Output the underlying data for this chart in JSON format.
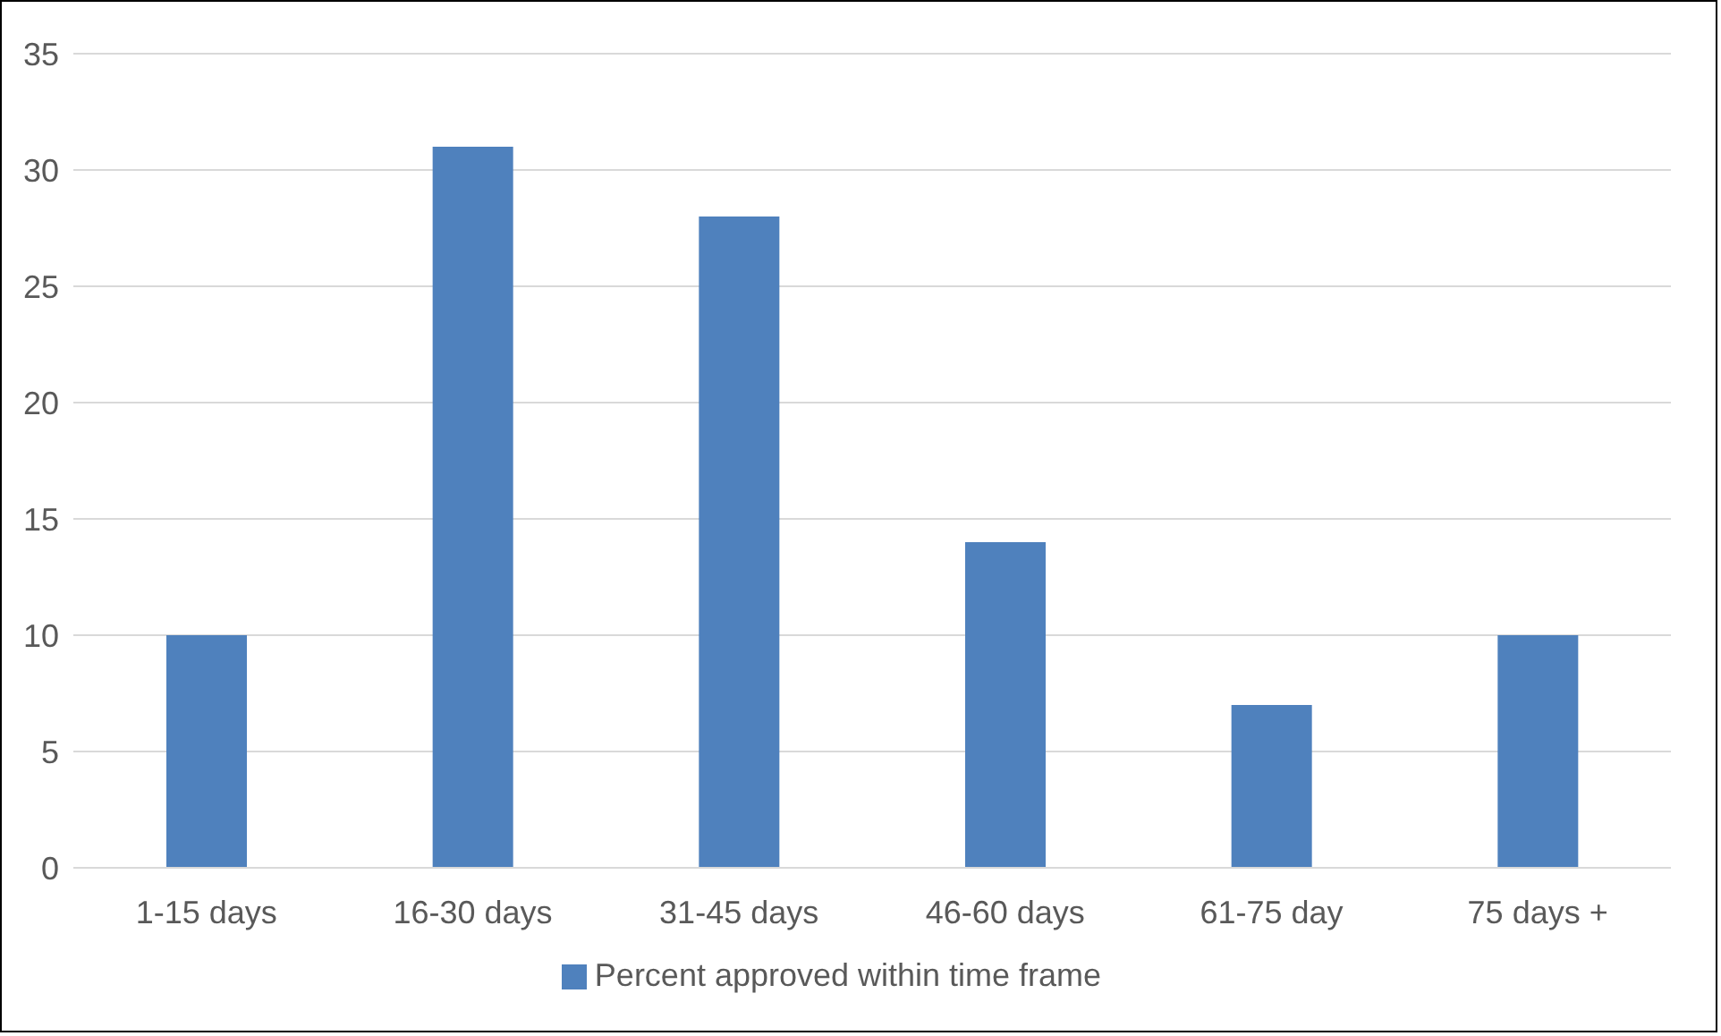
{
  "chart_data": {
    "type": "bar",
    "categories": [
      "1-15 days",
      "16-30 days",
      "31-45 days",
      "46-60 days",
      "61-75 day",
      "75 days +"
    ],
    "series": [
      {
        "name": "Percent approved within time frame",
        "color": "#4f81bd",
        "values": [
          10,
          31,
          28,
          14,
          7,
          10
        ]
      }
    ],
    "ylim": [
      0,
      35
    ],
    "yticks": [
      0,
      5,
      10,
      15,
      20,
      25,
      30,
      35
    ],
    "grid": "y",
    "legend": "bottom"
  }
}
